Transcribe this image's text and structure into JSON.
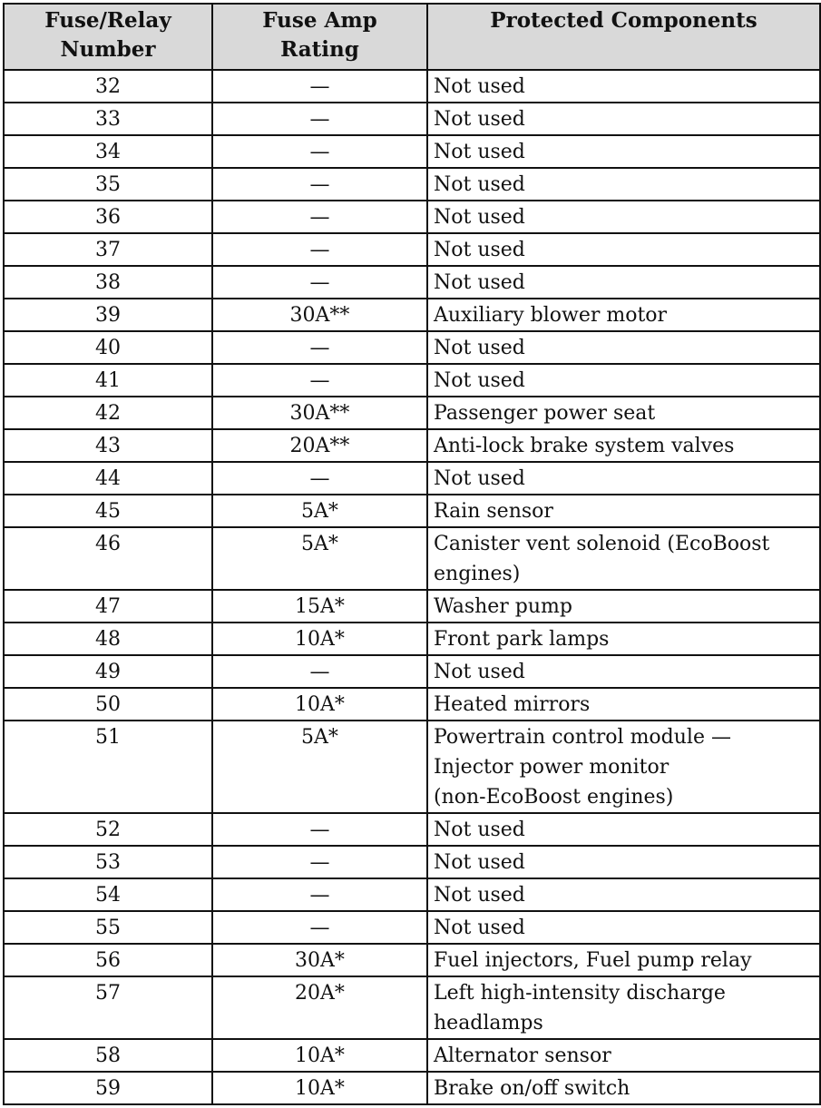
{
  "table": {
    "headers": [
      "Fuse/Relay\nNumber",
      "Fuse Amp\nRating",
      "Protected Components"
    ],
    "rows": [
      {
        "number": "32",
        "rating": "—",
        "component": "Not used"
      },
      {
        "number": "33",
        "rating": "—",
        "component": "Not used"
      },
      {
        "number": "34",
        "rating": "—",
        "component": "Not used"
      },
      {
        "number": "35",
        "rating": "—",
        "component": "Not used"
      },
      {
        "number": "36",
        "rating": "—",
        "component": "Not used"
      },
      {
        "number": "37",
        "rating": "—",
        "component": "Not used"
      },
      {
        "number": "38",
        "rating": "—",
        "component": "Not used"
      },
      {
        "number": "39",
        "rating": "30A**",
        "component": "Auxiliary blower motor"
      },
      {
        "number": "40",
        "rating": "—",
        "component": "Not used"
      },
      {
        "number": "41",
        "rating": "—",
        "component": "Not used"
      },
      {
        "number": "42",
        "rating": "30A**",
        "component": "Passenger power seat"
      },
      {
        "number": "43",
        "rating": "20A**",
        "component": "Anti-lock brake system valves"
      },
      {
        "number": "44",
        "rating": "—",
        "component": "Not used"
      },
      {
        "number": "45",
        "rating": "5A*",
        "component": "Rain sensor"
      },
      {
        "number": "46",
        "rating": "5A*",
        "component": "Canister vent solenoid (EcoBoost\nengines)"
      },
      {
        "number": "47",
        "rating": "15A*",
        "component": "Washer pump"
      },
      {
        "number": "48",
        "rating": "10A*",
        "component": "Front park lamps"
      },
      {
        "number": "49",
        "rating": "—",
        "component": "Not used"
      },
      {
        "number": "50",
        "rating": "10A*",
        "component": "Heated mirrors"
      },
      {
        "number": "51",
        "rating": "5A*",
        "component": "Powertrain control module —\nInjector power monitor\n(non-EcoBoost engines)"
      },
      {
        "number": "52",
        "rating": "—",
        "component": "Not used"
      },
      {
        "number": "53",
        "rating": "—",
        "component": "Not used"
      },
      {
        "number": "54",
        "rating": "—",
        "component": "Not used"
      },
      {
        "number": "55",
        "rating": "—",
        "component": "Not used"
      },
      {
        "number": "56",
        "rating": "30A*",
        "component": "Fuel injectors, Fuel pump relay"
      },
      {
        "number": "57",
        "rating": "20A*",
        "component": "Left high-intensity discharge\nheadlamps"
      },
      {
        "number": "58",
        "rating": "10A*",
        "component": "Alternator sensor"
      },
      {
        "number": "59",
        "rating": "10A*",
        "component": "Brake on/off switch"
      }
    ]
  }
}
